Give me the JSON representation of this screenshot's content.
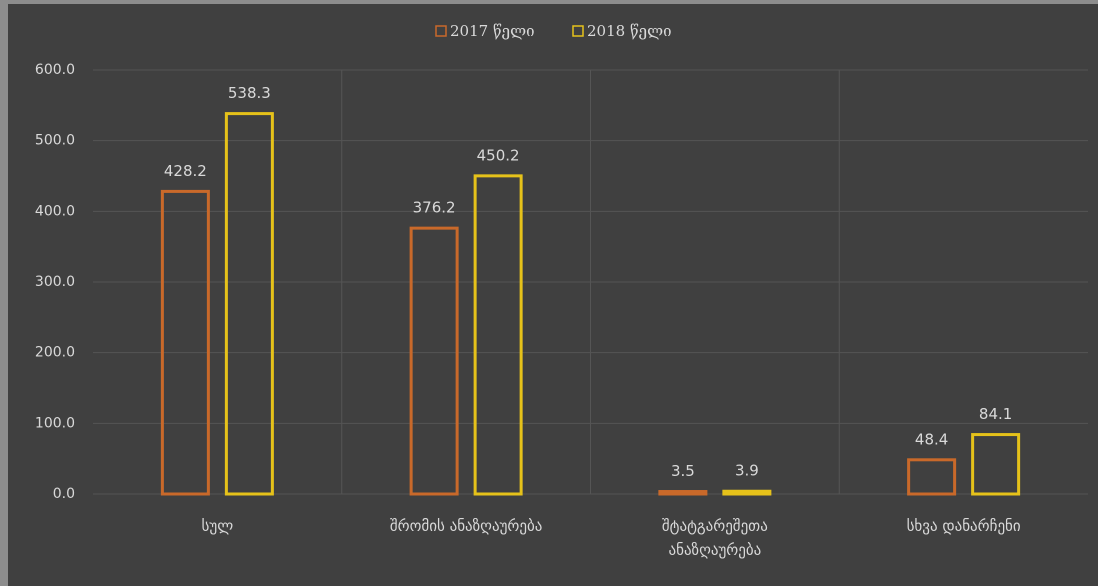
{
  "chart_data": {
    "type": "bar",
    "categories": [
      "სულ",
      "შრომის ანაზღაურება",
      "შტატგარეშეთა\nანაზღაურება",
      "სხვა დანარჩენი"
    ],
    "series": [
      {
        "name": "2017 წელი",
        "color": "#c9692a",
        "values": [
          428.2,
          376.2,
          3.5,
          48.4
        ]
      },
      {
        "name": "2018 წელი",
        "color": "#e6c21a",
        "values": [
          538.3,
          450.2,
          3.9,
          84.1
        ]
      }
    ],
    "ylim": [
      0,
      600
    ],
    "yticks": [
      {
        "value": 0,
        "label": "0.0"
      },
      {
        "value": 100,
        "label": "100.0"
      },
      {
        "value": 200,
        "label": "200.0"
      },
      {
        "value": 300,
        "label": "300.0"
      },
      {
        "value": 400,
        "label": "400.0"
      },
      {
        "value": 500,
        "label": "500.0"
      },
      {
        "value": 600,
        "label": "600.0"
      }
    ],
    "grid": true,
    "legend": "top"
  }
}
